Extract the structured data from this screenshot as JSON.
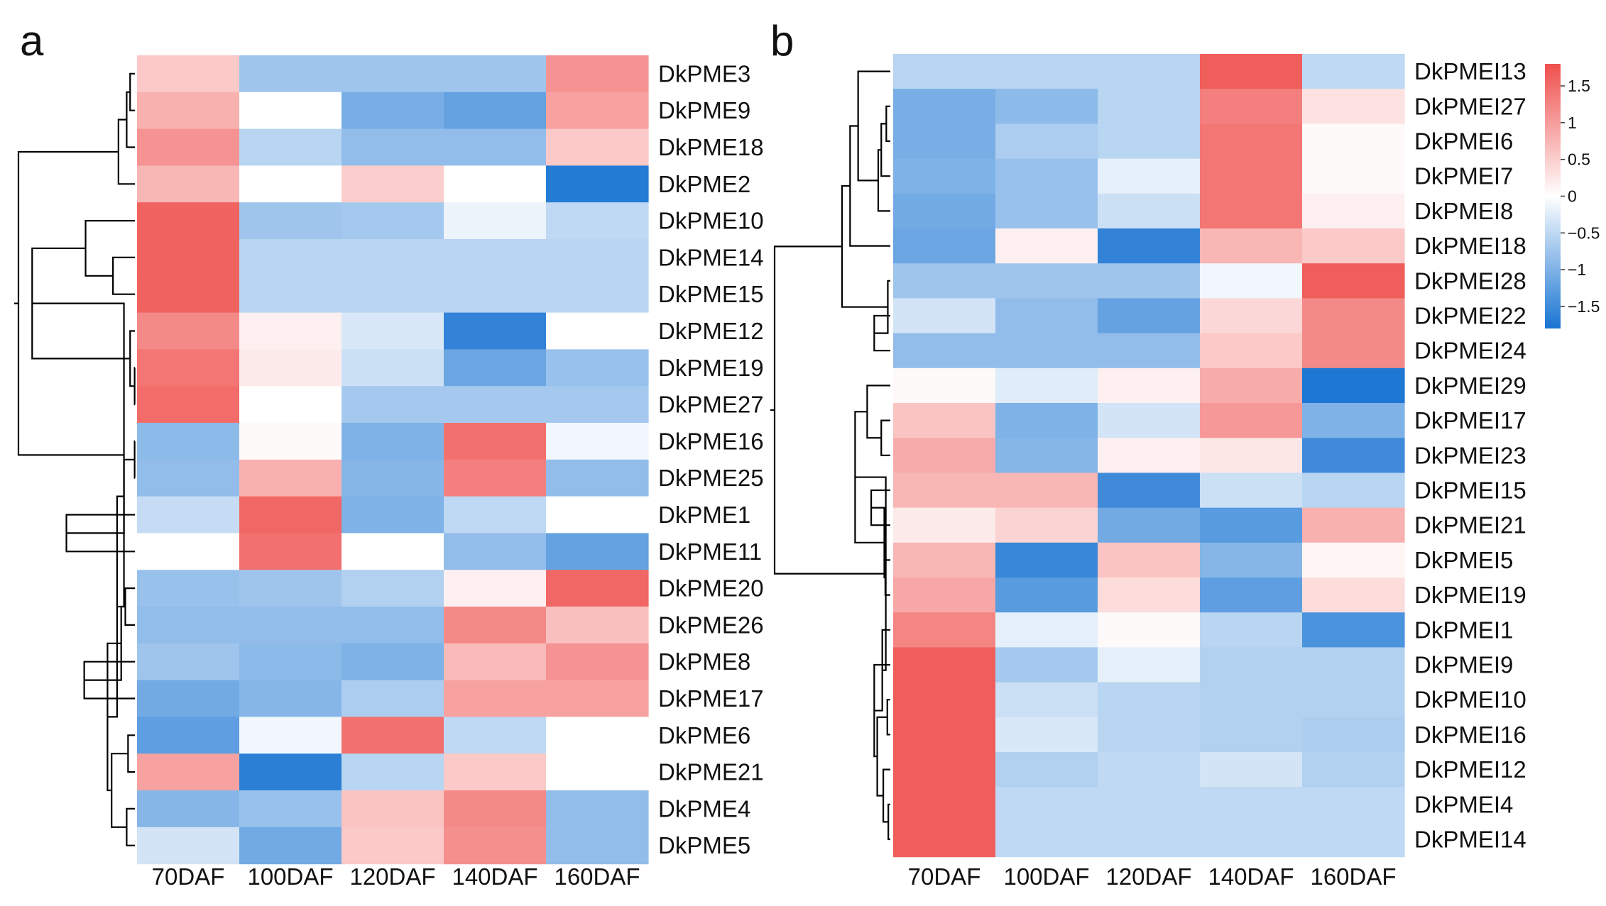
{
  "chart_data": [
    {
      "type": "heatmap",
      "panel_label": "a",
      "columns": [
        "70DAF",
        "100DAF",
        "120DAF",
        "140DAF",
        "160DAF"
      ],
      "rows": [
        "DkPME3",
        "DkPME9",
        "DkPME18",
        "DkPME2",
        "DkPME10",
        "DkPME14",
        "DkPME15",
        "DkPME12",
        "DkPME19",
        "DkPME27",
        "DkPME16",
        "DkPME25",
        "DkPME1",
        "DkPME11",
        "DkPME20",
        "DkPME26",
        "DkPME8",
        "DkPME17",
        "DkPME6",
        "DkPME21",
        "DkPME4",
        "DkPME5"
      ],
      "values": [
        [
          0.55,
          -0.75,
          -0.75,
          -0.75,
          1.1
        ],
        [
          0.8,
          0.0,
          -1.05,
          -1.2,
          0.95
        ],
        [
          1.1,
          -0.55,
          -0.85,
          -0.85,
          0.55
        ],
        [
          0.75,
          0.0,
          0.5,
          0.0,
          -1.7
        ],
        [
          1.6,
          -0.75,
          -0.7,
          -0.15,
          -0.5
        ],
        [
          1.6,
          -0.55,
          -0.55,
          -0.55,
          -0.55
        ],
        [
          1.6,
          -0.55,
          -0.55,
          -0.55,
          -0.55
        ],
        [
          1.2,
          0.15,
          -0.3,
          -1.6,
          0.0
        ],
        [
          1.4,
          0.2,
          -0.4,
          -1.15,
          -0.8
        ],
        [
          1.5,
          0.0,
          -0.7,
          -0.7,
          -0.7
        ],
        [
          -0.9,
          0.05,
          -1.0,
          1.45,
          -0.1
        ],
        [
          -0.85,
          0.8,
          -0.95,
          1.3,
          -0.85
        ],
        [
          -0.45,
          1.55,
          -1.0,
          -0.5,
          0.0
        ],
        [
          0.0,
          1.45,
          0.0,
          -0.85,
          -1.2
        ],
        [
          -0.8,
          -0.75,
          -0.6,
          0.15,
          1.55
        ],
        [
          -0.85,
          -0.85,
          -0.85,
          1.2,
          0.65
        ],
        [
          -0.75,
          -0.9,
          -1.0,
          0.7,
          1.1
        ],
        [
          -1.1,
          -0.95,
          -0.65,
          0.95,
          0.95
        ],
        [
          -1.25,
          -0.1,
          1.45,
          -0.5,
          0.0
        ],
        [
          0.95,
          -1.65,
          -0.55,
          0.55,
          0.0
        ],
        [
          -0.95,
          -0.8,
          0.6,
          1.2,
          -0.85
        ],
        [
          -0.35,
          -1.1,
          0.55,
          1.15,
          -0.85
        ]
      ],
      "color_scale": {
        "min": -1.8,
        "max": 1.8,
        "low_color": "#1874d2",
        "mid_color": "#ffffff",
        "high_color": "#ef4f4c"
      }
    },
    {
      "type": "heatmap",
      "panel_label": "b",
      "columns": [
        "70DAF",
        "100DAF",
        "120DAF",
        "140DAF",
        "160DAF"
      ],
      "rows": [
        "DkPMEI13",
        "DkPMEI27",
        "DkPMEI6",
        "DkPMEI7",
        "DkPMEI8",
        "DkPMEI18",
        "DkPMEI28",
        "DkPMEI22",
        "DkPMEI24",
        "DkPMEI29",
        "DkPMEI17",
        "DkPMEI23",
        "DkPMEI15",
        "DkPMEI21",
        "DkPMEI5",
        "DkPMEI19",
        "DkPMEI1",
        "DkPMEI9",
        "DkPMEI10",
        "DkPMEI16",
        "DkPMEI12",
        "DkPMEI4",
        "DkPMEI14"
      ],
      "values": [
        [
          -0.55,
          -0.55,
          -0.55,
          1.65,
          -0.5
        ],
        [
          -1.05,
          -0.9,
          -0.55,
          1.3,
          0.3
        ],
        [
          -1.05,
          -0.65,
          -0.55,
          1.4,
          0.05
        ],
        [
          -1.0,
          -0.8,
          -0.2,
          1.4,
          0.05
        ],
        [
          -1.1,
          -0.8,
          -0.4,
          1.4,
          0.15
        ],
        [
          -1.15,
          0.15,
          -1.6,
          0.75,
          0.55
        ],
        [
          -0.75,
          -0.75,
          -0.75,
          -0.1,
          1.65
        ],
        [
          -0.35,
          -0.85,
          -1.2,
          0.4,
          1.2
        ],
        [
          -0.85,
          -0.85,
          -0.85,
          0.55,
          1.2
        ],
        [
          0.05,
          -0.25,
          0.15,
          0.85,
          -1.75
        ],
        [
          0.6,
          -1.0,
          -0.35,
          1.05,
          -1.0
        ],
        [
          0.85,
          -0.95,
          0.15,
          0.25,
          -1.5
        ],
        [
          0.75,
          0.75,
          -1.5,
          -0.4,
          -0.55
        ],
        [
          0.2,
          0.45,
          -1.1,
          -1.3,
          0.8
        ],
        [
          0.75,
          -1.55,
          0.6,
          -0.95,
          0.1
        ],
        [
          0.9,
          -1.3,
          0.35,
          -1.25,
          0.35
        ],
        [
          1.25,
          -0.2,
          0.05,
          -0.55,
          -1.4
        ],
        [
          1.65,
          -0.7,
          -0.2,
          -0.6,
          -0.6
        ],
        [
          1.65,
          -0.4,
          -0.55,
          -0.6,
          -0.6
        ],
        [
          1.65,
          -0.3,
          -0.55,
          -0.6,
          -0.65
        ],
        [
          1.65,
          -0.6,
          -0.5,
          -0.35,
          -0.6
        ],
        [
          1.65,
          -0.5,
          -0.5,
          -0.5,
          -0.5
        ],
        [
          1.65,
          -0.5,
          -0.5,
          -0.5,
          -0.5
        ]
      ],
      "color_scale": {
        "min": -1.8,
        "max": 1.8,
        "low_color": "#1874d2",
        "mid_color": "#ffffff",
        "high_color": "#ef4f4c"
      }
    }
  ],
  "colorbar": {
    "ticks": [
      {
        "value": 1.5,
        "label": "1.5"
      },
      {
        "value": 1,
        "label": "1"
      },
      {
        "value": 0.5,
        "label": "0.5"
      },
      {
        "value": 0,
        "label": "0"
      },
      {
        "value": -0.5,
        "label": "−0.5"
      },
      {
        "value": -1,
        "label": "−1"
      },
      {
        "value": -1.5,
        "label": "−1.5"
      }
    ],
    "range": [
      -1.8,
      1.8
    ]
  },
  "dendrograms": {
    "a": {
      "tree": [
        [
          [
            [
              "DkPME3",
              "DkPME9"
            ],
            "DkPME18"
          ],
          "DkPME2"
        ],
        [
          [
            [
              "DkPME10",
              [
                "DkPME14",
                "DkPME15"
              ]
            ],
            [
              "DkPME12",
              [
                "DkPME19",
                "DkPME27"
              ]
            ]
          ],
          [
            [
              [
                "DkPME16",
                "DkPME25"
              ],
              [
                "DkPME1",
                "DkPME11"
              ]
            ],
            [
              [
                [
                  "DkPME20",
                  "DkPME26"
                ],
                [
                  "DkPME8",
                  "DkPME17"
                ]
              ],
              [
                [
                  "DkPME6",
                  "DkPME21"
                ],
                [
                  "DkPME4",
                  "DkPME5"
                ]
              ]
            ]
          ]
        ]
      ],
      "heights": [
        8.5,
        1.2,
        0.6,
        0.35,
        0.8,
        7.5,
        3.6,
        1.6,
        0.35,
        0.02,
        1.3,
        0.8,
        0.02,
        5.0,
        2.0,
        1.0,
        0.7,
        3.7,
        1.7,
        0.5,
        0.6,
        2.5,
        0.6,
        0.7
      ]
    },
    "b": {
      "tree": [
        [
          [
            [
              "DkPMEI13",
              [
                [
                  [
                    "DkPMEI27",
                    "DkPMEI6"
                  ],
                  "DkPMEI7"
                ],
                "DkPMEI8"
              ]
            ],
            "DkPMEI18"
          ],
          [
            "DkPMEI28",
            [
              "DkPMEI22",
              "DkPMEI24"
            ]
          ]
        ],
        [
          [
            [
              "DkPMEI29",
              [
                "DkPMEI17",
                "DkPMEI23"
              ]
            ],
            [
              [
                "DkPMEI15",
                "DkPMEI21"
              ],
              [
                "DkPMEI5",
                "DkPMEI19"
              ]
            ]
          ],
          [
            "DkPMEI1",
            [
              "DkPMEI9",
              [
                [
                  "DkPMEI10",
                  "DkPMEI16"
                ],
                [
                  "DkPMEI12",
                  [
                    "DkPMEI4",
                    "DkPMEI14"
                  ]
                ]
              ]
            ]
          ]
        ]
      ],
      "heights": [
        11.5,
        4.8,
        4.0,
        3.2,
        1.2,
        0.9,
        0.4,
        0.25,
        1.6,
        0.45,
        3.5,
        2.3,
        0.9,
        0.6,
        1.9,
        0.5,
        0.8,
        1.6,
        1.3,
        0.3,
        0.7,
        0.2,
        0.25,
        0.02
      ]
    }
  }
}
